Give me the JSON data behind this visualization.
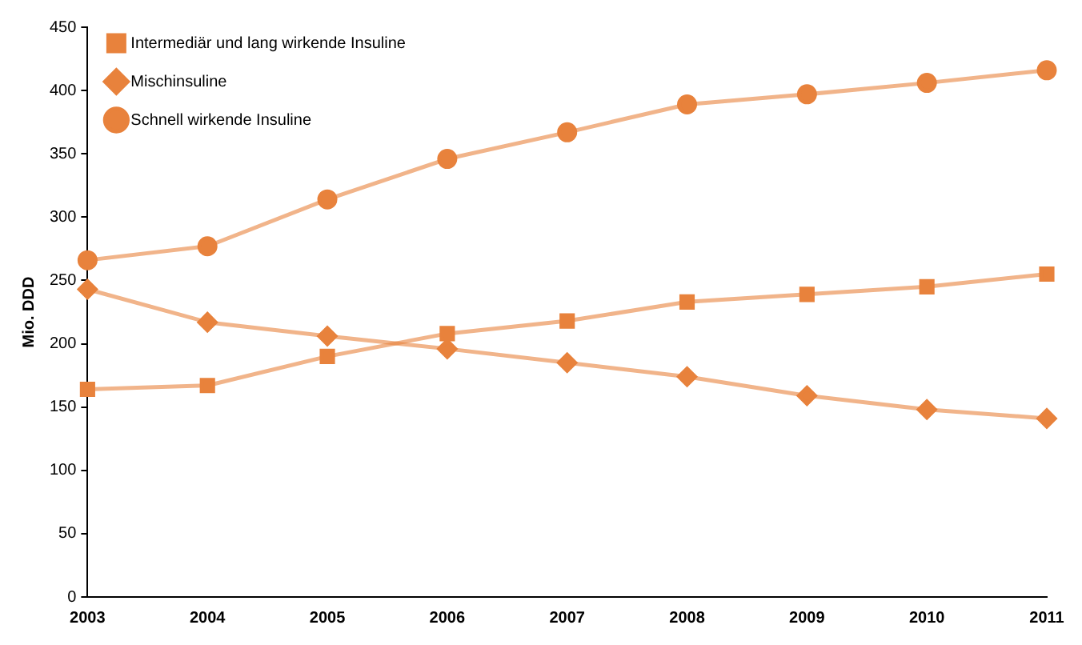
{
  "chart_data": {
    "type": "line",
    "ylabel": "Mio. DDD",
    "categories": [
      "2003",
      "2004",
      "2005",
      "2006",
      "2007",
      "2008",
      "2009",
      "2010",
      "2011"
    ],
    "series": [
      {
        "name": "Intermediär und lang wirkende Insuline",
        "color": "#e8823c",
        "marker": "square",
        "values": [
          164,
          167,
          190,
          208,
          218,
          233,
          239,
          245,
          255
        ]
      },
      {
        "name": "Mischinsuline",
        "color": "#e8823c",
        "marker": "diamond",
        "values": [
          243,
          217,
          206,
          196,
          185,
          174,
          159,
          148,
          141
        ]
      },
      {
        "name": "Schnell wirkende Insuline",
        "color": "#e8823c",
        "marker": "circle",
        "values": [
          266,
          277,
          314,
          346,
          367,
          389,
          397,
          406,
          416
        ]
      }
    ],
    "ylim": [
      0,
      450
    ],
    "yticks": [
      0,
      50,
      100,
      150,
      200,
      250,
      300,
      350,
      400,
      450
    ],
    "grid": false,
    "legend": "top left",
    "line_style": "solid"
  }
}
